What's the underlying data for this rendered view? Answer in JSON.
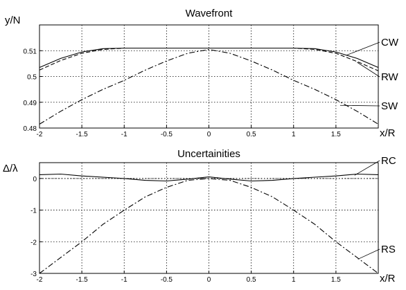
{
  "chart_data": [
    {
      "type": "line",
      "title": "Wavefront",
      "ylabel": "y/N",
      "xlabel": "x/R",
      "xlim": [
        -2,
        2
      ],
      "ylim": [
        0.48,
        0.52
      ],
      "xticks": [
        "-2",
        "-1.5",
        "-1",
        "-0.5",
        "0",
        "0.5",
        "1",
        "1.5"
      ],
      "yticks": [
        "0.48",
        "0.49",
        "0.5",
        "0.51"
      ],
      "grid": true,
      "series": [
        {
          "name": "CW",
          "style": "solid",
          "x": [
            -2,
            -1.75,
            -1.5,
            -1.25,
            -1,
            -0.5,
            0,
            0.5,
            1,
            1.25,
            1.5,
            1.75,
            2
          ],
          "y": [
            0.5035,
            0.507,
            0.5095,
            0.5108,
            0.511,
            0.511,
            0.511,
            0.511,
            0.511,
            0.5108,
            0.5095,
            0.507,
            0.5035
          ]
        },
        {
          "name": "RW",
          "style": "dashed",
          "x": [
            -2,
            -1.75,
            -1.5,
            -1.25,
            -1,
            -0.5,
            0,
            0.5,
            1,
            1.25,
            1.5,
            1.75,
            2
          ],
          "y": [
            0.5025,
            0.5062,
            0.509,
            0.5105,
            0.511,
            0.511,
            0.511,
            0.511,
            0.511,
            0.5105,
            0.509,
            0.5058,
            0.5022
          ]
        },
        {
          "name": "SW",
          "style": "dashdot",
          "x": [
            -2,
            -1.75,
            -1.5,
            -1.25,
            -1,
            -0.75,
            -0.5,
            -0.25,
            0,
            0.25,
            0.5,
            0.75,
            1,
            1.25,
            1.5,
            1.75,
            2
          ],
          "y": [
            0.4815,
            0.4865,
            0.491,
            0.495,
            0.4985,
            0.5025,
            0.506,
            0.509,
            0.5105,
            0.509,
            0.506,
            0.5025,
            0.4985,
            0.495,
            0.491,
            0.4865,
            0.4815
          ]
        }
      ]
    },
    {
      "type": "line",
      "title": "Uncertainities",
      "ylabel": "Δ/λ",
      "xlabel": "x/R",
      "xlim": [
        -2,
        2
      ],
      "ylim": [
        -3,
        0.5
      ],
      "xticks": [
        "-2",
        "-1.5",
        "-1",
        "-0.5",
        "0",
        "0.5",
        "1",
        "1.5"
      ],
      "yticks": [
        "-3",
        "-2",
        "-1",
        "0"
      ],
      "grid": true,
      "series": [
        {
          "name": "RC",
          "style": "solid",
          "x": [
            -2,
            -1.75,
            -1.5,
            -1.25,
            -1,
            -0.75,
            -0.5,
            -0.25,
            0,
            0.25,
            0.5,
            0.75,
            1,
            1.25,
            1.5,
            1.75,
            2
          ],
          "y": [
            0.12,
            0.14,
            0.08,
            0.04,
            0.0,
            -0.06,
            -0.08,
            -0.02,
            0.05,
            -0.02,
            -0.08,
            -0.06,
            0.0,
            0.04,
            0.08,
            0.14,
            0.12
          ]
        },
        {
          "name": "RS",
          "style": "dashdot",
          "x": [
            -2,
            -1.75,
            -1.5,
            -1.25,
            -1,
            -0.75,
            -0.5,
            -0.25,
            0,
            0.25,
            0.5,
            0.75,
            1,
            1.25,
            1.5,
            1.75,
            2
          ],
          "y": [
            -3.0,
            -2.5,
            -2.0,
            -1.45,
            -1.0,
            -0.58,
            -0.28,
            -0.06,
            0.0,
            -0.06,
            -0.28,
            -0.58,
            -1.0,
            -1.45,
            -2.0,
            -2.5,
            -3.0
          ]
        },
        {
          "name": "",
          "style": "dotted",
          "x": [
            -2,
            2
          ],
          "y": [
            0,
            0
          ]
        }
      ]
    }
  ]
}
